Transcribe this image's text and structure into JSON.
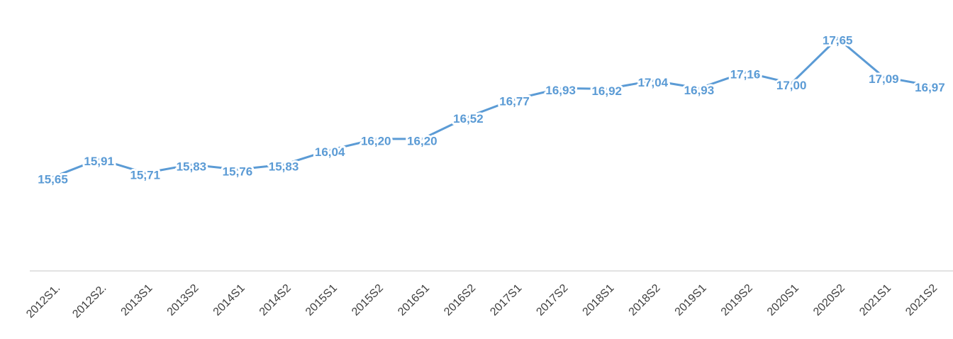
{
  "chart_data": {
    "type": "line",
    "categories": [
      "2012S1.",
      "2012S2.",
      "2013S1",
      "2013S2",
      "2014S1",
      "2014S2",
      "2015S1",
      "2015S2",
      "2016S1",
      "2016S2",
      "2017S1",
      "2017S2",
      "2018S1",
      "2018S2",
      "2019S1",
      "2019S2",
      "2020S1",
      "2020S2",
      "2021S1",
      "2021S2"
    ],
    "values": [
      15.65,
      15.91,
      15.71,
      15.83,
      15.76,
      15.83,
      16.04,
      16.2,
      16.2,
      16.52,
      16.77,
      16.93,
      16.92,
      17.04,
      16.93,
      17.16,
      17.0,
      17.65,
      17.09,
      16.97
    ],
    "value_labels": [
      "15,65",
      "15,91",
      "15,71",
      "15,83",
      "15,76",
      "15,83",
      "16,04",
      "16,20",
      "16,20",
      "16,52",
      "16,77",
      "16,93",
      "16,92",
      "17,04",
      "16,93",
      "17,16",
      "17,00",
      "17,65",
      "17,09",
      "16,97"
    ],
    "color": "#5b9bd5",
    "ylim": [
      14.3,
      18.2
    ]
  }
}
